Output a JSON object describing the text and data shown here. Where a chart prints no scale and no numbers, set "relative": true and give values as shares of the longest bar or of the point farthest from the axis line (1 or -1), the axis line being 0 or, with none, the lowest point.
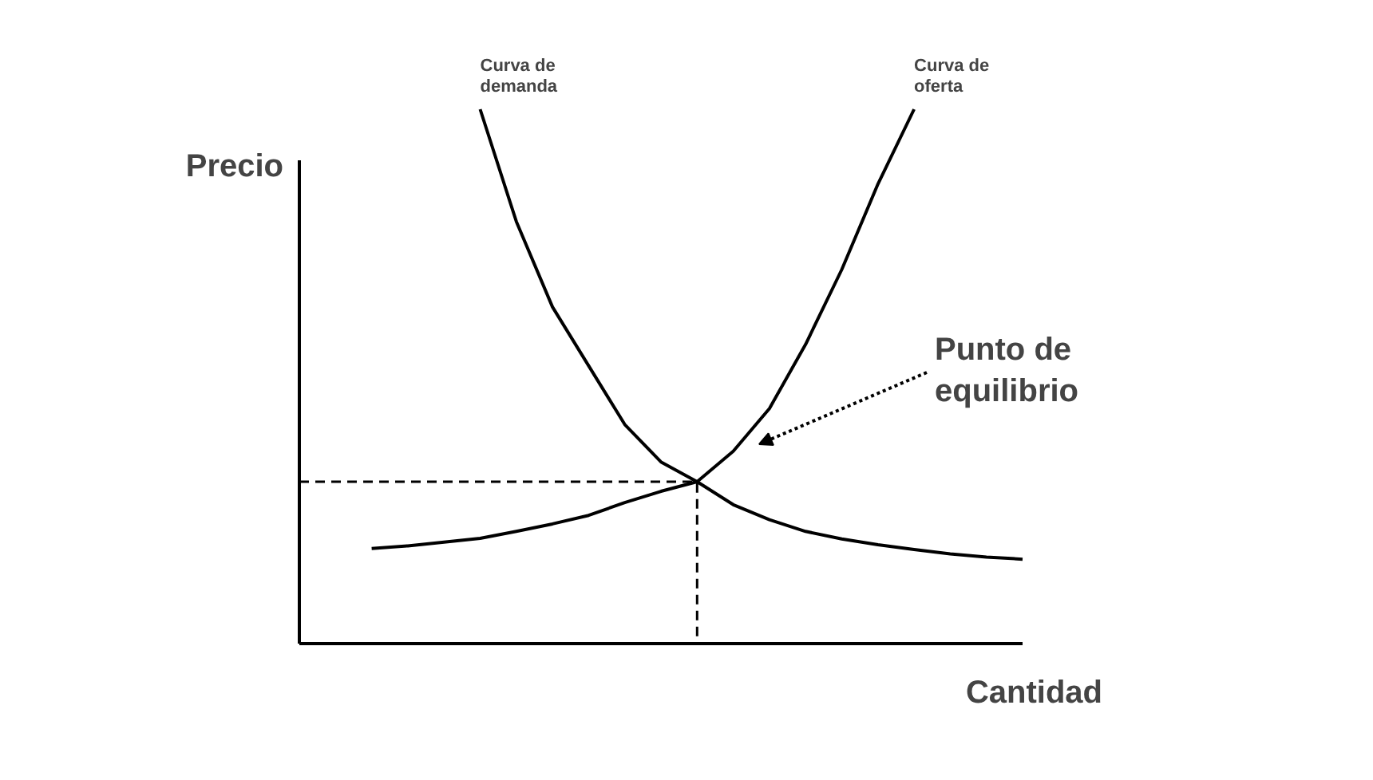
{
  "chart_data": {
    "type": "line",
    "relative": true,
    "xlabel": "Cantidad",
    "ylabel": "Precio",
    "categories": [
      null,
      null,
      null,
      null,
      null,
      null,
      null,
      null,
      null,
      null,
      null,
      null,
      null,
      null,
      null,
      null,
      null,
      null,
      null,
      null,
      null
    ],
    "series": [
      {
        "name": "Curva de\ndemanda",
        "color": "#000000",
        "values": [
          null,
          null,
          null,
          null,
          null,
          1.0,
          0.79,
          0.63,
          0.52,
          0.41,
          0.34,
          0.303,
          0.26,
          0.232,
          0.21,
          0.196,
          0.185,
          0.176,
          0.168,
          0.162,
          0.158
        ]
      },
      {
        "name": "Curva de\noferta",
        "color": "#000000",
        "values": [
          null,
          null,
          0.178,
          0.183,
          0.19,
          0.197,
          0.21,
          0.224,
          0.24,
          0.264,
          0.285,
          0.303,
          0.36,
          0.44,
          0.56,
          0.7,
          0.86,
          1.0,
          null,
          null,
          null
        ]
      }
    ],
    "ref_lines": [
      {
        "axis": "y",
        "value": 0.303,
        "color": "#000000",
        "line_style": "dashed"
      }
    ],
    "annotations": [
      "Punto de\nequilibrio"
    ]
  }
}
